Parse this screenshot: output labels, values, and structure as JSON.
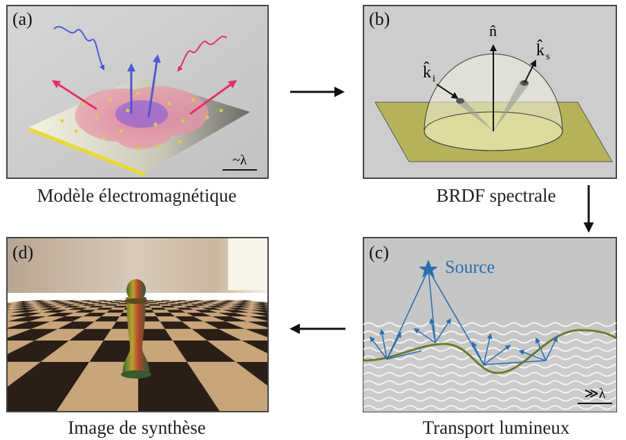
{
  "panels": [
    {
      "label": "(a)",
      "caption": "Modèle électromagnétique",
      "scale": "~λ"
    },
    {
      "label": "(b)",
      "caption": "BRDF spectrale",
      "normal": "n̂",
      "incident": {
        "symbol": "k̂",
        "subscript": "i"
      },
      "scattered": {
        "symbol": "k̂",
        "subscript": "s"
      }
    },
    {
      "label": "(c)",
      "caption": "Transport lumineux",
      "source": "Source",
      "scale": "≫λ"
    },
    {
      "label": "(d)",
      "caption": "Image de synthèse"
    }
  ]
}
